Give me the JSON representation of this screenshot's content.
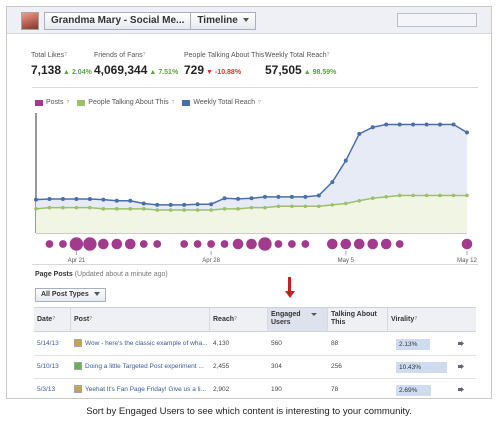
{
  "header": {
    "page_name": "Grandma Mary - Social Me...",
    "view_label": "Timeline"
  },
  "metrics": [
    {
      "label": "Total Likes",
      "value": "7,138",
      "change": "2.04%",
      "direction": "up"
    },
    {
      "label": "Friends of Fans",
      "value": "4,069,344",
      "change": "7.51%",
      "direction": "up"
    },
    {
      "label": "People Talking About This",
      "value": "729",
      "change": "-10.88%",
      "direction": "down"
    },
    {
      "label": "Weekly Total Reach",
      "value": "57,505",
      "change": "98.59%",
      "direction": "up"
    }
  ],
  "chart_data": {
    "type": "line",
    "legend": [
      "Posts",
      "People Talking About This",
      "Weekly Total Reach"
    ],
    "x_ticks": [
      "Apr 21",
      "Apr 28",
      "May 5",
      "May 12"
    ],
    "series": [
      {
        "name": "Weekly Total Reach",
        "color": "#4a6ea8",
        "values": [
          19.5,
          19.8,
          19.8,
          19.8,
          19.8,
          19.5,
          18.8,
          18.8,
          17.2,
          16.4,
          16.4,
          16.4,
          16.8,
          16.8,
          20.3,
          19.9,
          20.3,
          21.1,
          21.1,
          21.1,
          21.1,
          21.9,
          29.7,
          42.2,
          57.8,
          61.7,
          63.3,
          63.3,
          63.3,
          63.3,
          63.3,
          63.3,
          58.6
        ]
      },
      {
        "name": "People Talking About This",
        "color": "#9cc06a",
        "values": [
          14.1,
          14.8,
          14.8,
          14.8,
          14.8,
          14.1,
          14.1,
          14.1,
          14.1,
          13.4,
          13.4,
          13.4,
          13.4,
          13.4,
          14.1,
          14.1,
          14.8,
          14.8,
          15.6,
          15.6,
          15.6,
          15.6,
          16.4,
          17.2,
          18.8,
          20.3,
          21.1,
          21.9,
          21.9,
          21.9,
          21.9,
          21.9,
          21.9
        ]
      },
      {
        "name": "Posts",
        "color": "#a23b8e",
        "points": [
          [
            1,
            1
          ],
          [
            2,
            1
          ],
          [
            3,
            3
          ],
          [
            4,
            3
          ],
          [
            5,
            2
          ],
          [
            6,
            2
          ],
          [
            7,
            2
          ],
          [
            8,
            1
          ],
          [
            9,
            1
          ],
          [
            11,
            1
          ],
          [
            12,
            1
          ],
          [
            13,
            1
          ],
          [
            14,
            1
          ],
          [
            15,
            2
          ],
          [
            16,
            2
          ],
          [
            17,
            3
          ],
          [
            18,
            1
          ],
          [
            19,
            1
          ],
          [
            20,
            1
          ],
          [
            22,
            2
          ],
          [
            23,
            2
          ],
          [
            24,
            2
          ],
          [
            25,
            2
          ],
          [
            26,
            2
          ],
          [
            27,
            1
          ],
          [
            32,
            2
          ]
        ]
      }
    ]
  },
  "page_posts": {
    "title": "Page Posts",
    "subtitle": "(Updated about a minute ago)",
    "filter_label": "All Post Types",
    "columns": [
      "Date",
      "Post",
      "Reach",
      "Engaged Users",
      "Talking About This",
      "Virality"
    ],
    "rows": [
      {
        "date": "5/14/13",
        "post": "Wow - here's the classic example of wha...",
        "reach": "4,130",
        "engaged": "560",
        "talking": "88",
        "virality": "2.13%",
        "icon_color": "#c9a44a"
      },
      {
        "date": "5/10/13",
        "post": "Doing a little Targeted Post experiment ...",
        "reach": "2,455",
        "engaged": "304",
        "talking": "256",
        "virality": "10.43%",
        "icon_color": "#6ab04c"
      },
      {
        "date": "5/3/13",
        "post": "Yeehat It's Fan Page Friday! Give us a li...",
        "reach": "2,902",
        "engaged": "190",
        "talking": "78",
        "virality": "2.69%",
        "icon_color": "#c9a44a"
      }
    ]
  },
  "caption": "Sort by Engaged Users to see which content is interesting to your community."
}
